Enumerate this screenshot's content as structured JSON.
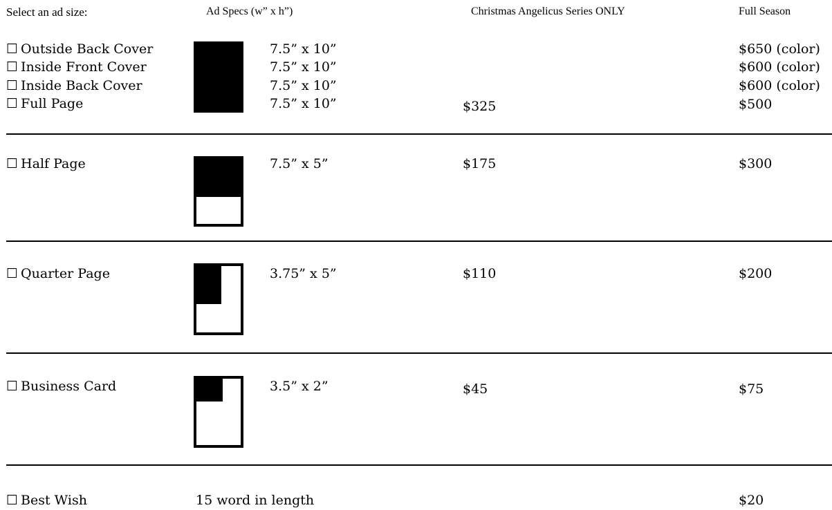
{
  "header": {
    "select_label": "Select an ad size:",
    "specs_label": "Ad Specs (w” x h”)",
    "christmas_label": "Christmas Angelicus Series ONLY",
    "full_season_label": "Full Season"
  },
  "checkbox_glyph": "☐",
  "rows": {
    "outside_back": {
      "label": "Outside Back Cover",
      "spec": "7.5” x 10”",
      "christmas": "",
      "full": "$650 (color)"
    },
    "inside_front": {
      "label": "Inside Front Cover",
      "spec": "7.5” x 10”",
      "christmas": "",
      "full": "$600 (color)"
    },
    "inside_back": {
      "label": "Inside Back Cover",
      "spec": "7.5” x 10”",
      "christmas": "",
      "full": "$600 (color)"
    },
    "full_page": {
      "label": "Full Page",
      "spec": "7.5” x 10”",
      "christmas": "$325",
      "full": "$500"
    },
    "half_page": {
      "label": "Half Page",
      "spec": "7.5” x 5”",
      "christmas": "$175",
      "full": "$300"
    },
    "quarter_page": {
      "label": "Quarter Page",
      "spec": "3.75” x 5”",
      "christmas": "$110",
      "full": "$200"
    },
    "business_card": {
      "label": "Business Card",
      "spec": "3.5” x 2”",
      "christmas": "$45",
      "full": "$75"
    },
    "best_wish": {
      "label": "Best Wish",
      "spec": "15 word in length",
      "christmas": "",
      "full": "$20"
    }
  }
}
